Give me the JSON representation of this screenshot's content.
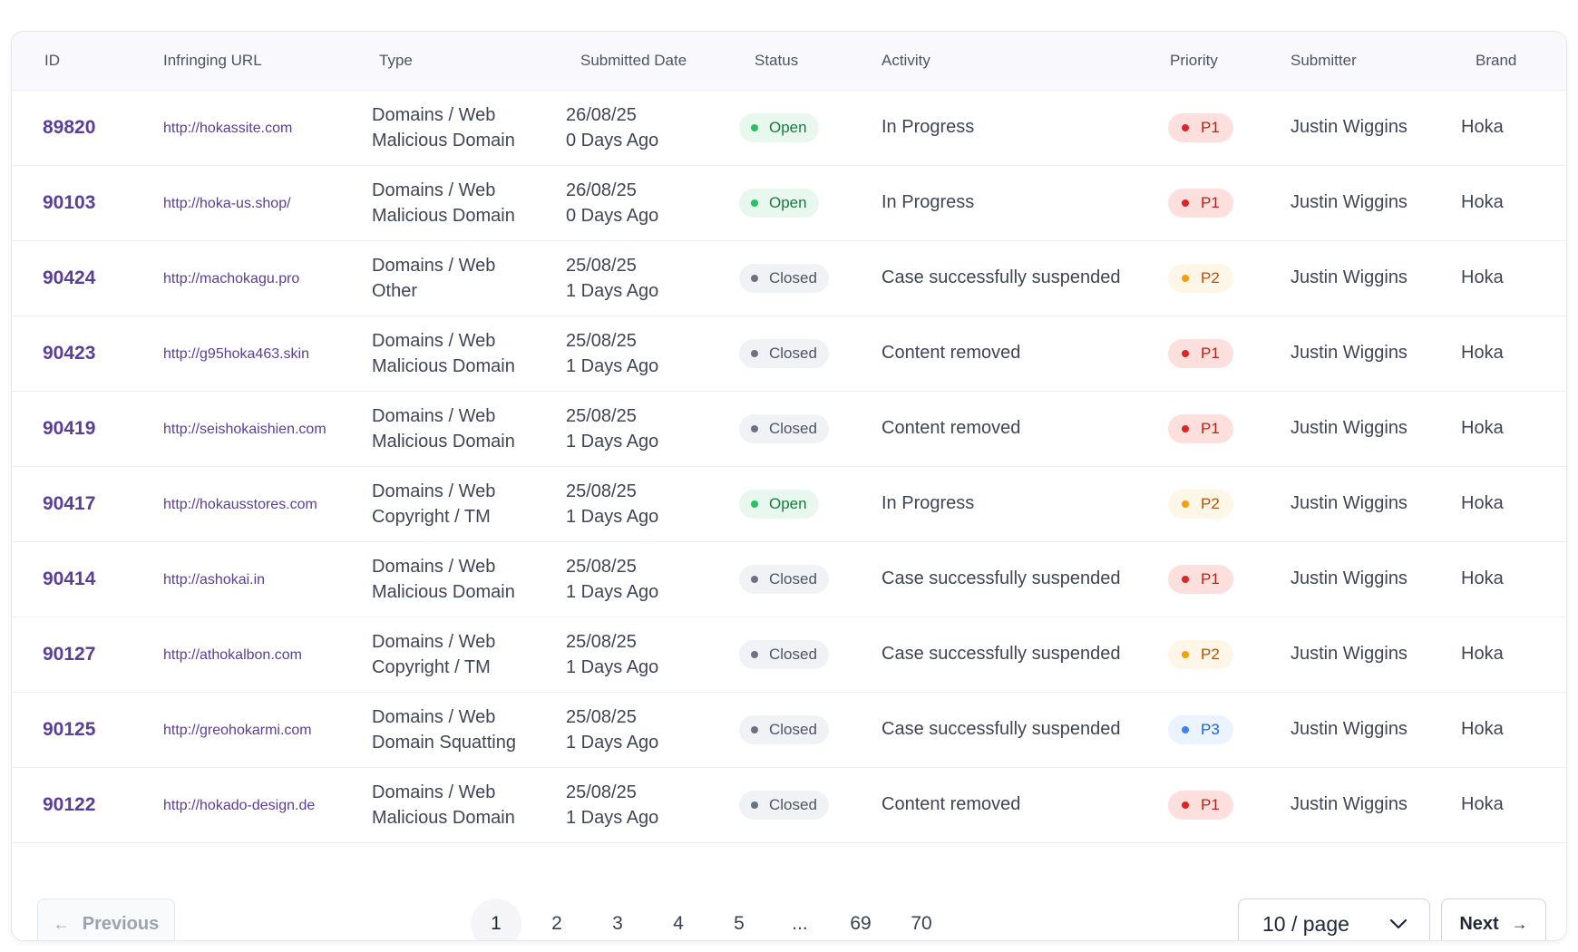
{
  "columns": {
    "id": "ID",
    "url": "Infringing URL",
    "type": "Type",
    "date": "Submitted Date",
    "status": "Status",
    "activity": "Activity",
    "priority": "Priority",
    "submitter": "Submitter",
    "brand": "Brand"
  },
  "rows": [
    {
      "id": "89820",
      "url": "http://hokassite.com",
      "type1": "Domains / Web",
      "type2": "Malicious Domain",
      "date": "26/08/25",
      "ago": "0 Days Ago",
      "status": "Open",
      "activity": "In Progress",
      "priority": "P1",
      "submitter": "Justin Wiggins",
      "brand": "Hoka"
    },
    {
      "id": "90103",
      "url": "http://hoka-us.shop/",
      "type1": "Domains / Web",
      "type2": "Malicious Domain",
      "date": "26/08/25",
      "ago": "0 Days Ago",
      "status": "Open",
      "activity": "In Progress",
      "priority": "P1",
      "submitter": "Justin Wiggins",
      "brand": "Hoka"
    },
    {
      "id": "90424",
      "url": "http://machokagu.pro",
      "type1": "Domains / Web",
      "type2": "Other",
      "date": "25/08/25",
      "ago": "1 Days Ago",
      "status": "Closed",
      "activity": "Case successfully suspended",
      "priority": "P2",
      "submitter": "Justin Wiggins",
      "brand": "Hoka"
    },
    {
      "id": "90423",
      "url": "http://g95hoka463.skin",
      "type1": "Domains / Web",
      "type2": "Malicious Domain",
      "date": "25/08/25",
      "ago": "1 Days Ago",
      "status": "Closed",
      "activity": "Content removed",
      "priority": "P1",
      "submitter": "Justin Wiggins",
      "brand": "Hoka"
    },
    {
      "id": "90419",
      "url": "http://seishokaishien.com",
      "type1": "Domains / Web",
      "type2": "Malicious Domain",
      "date": "25/08/25",
      "ago": "1 Days Ago",
      "status": "Closed",
      "activity": "Content removed",
      "priority": "P1",
      "submitter": "Justin Wiggins",
      "brand": "Hoka"
    },
    {
      "id": "90417",
      "url": "http://hokausstores.com",
      "type1": "Domains / Web",
      "type2": "Copyright / TM",
      "date": "25/08/25",
      "ago": "1 Days Ago",
      "status": "Open",
      "activity": "In Progress",
      "priority": "P2",
      "submitter": "Justin Wiggins",
      "brand": "Hoka"
    },
    {
      "id": "90414",
      "url": "http://ashokai.in",
      "type1": "Domains / Web",
      "type2": "Malicious Domain",
      "date": "25/08/25",
      "ago": "1 Days Ago",
      "status": "Closed",
      "activity": "Case successfully suspended",
      "priority": "P1",
      "submitter": "Justin Wiggins",
      "brand": "Hoka"
    },
    {
      "id": "90127",
      "url": "http://athokalbon.com",
      "type1": "Domains / Web",
      "type2": "Copyright / TM",
      "date": "25/08/25",
      "ago": "1 Days Ago",
      "status": "Closed",
      "activity": "Case successfully suspended",
      "priority": "P2",
      "submitter": "Justin Wiggins",
      "brand": "Hoka"
    },
    {
      "id": "90125",
      "url": "http://greohokarmi.com",
      "type1": "Domains / Web",
      "type2": "Domain Squatting",
      "date": "25/08/25",
      "ago": "1 Days Ago",
      "status": "Closed",
      "activity": "Case successfully suspended",
      "priority": "P3",
      "submitter": "Justin Wiggins",
      "brand": "Hoka"
    },
    {
      "id": "90122",
      "url": "http://hokado-design.de",
      "type1": "Domains / Web",
      "type2": "Malicious Domain",
      "date": "25/08/25",
      "ago": "1 Days Ago",
      "status": "Closed",
      "activity": "Content removed",
      "priority": "P1",
      "submitter": "Justin Wiggins",
      "brand": "Hoka"
    }
  ],
  "pagination": {
    "previous_label": "Previous",
    "next_label": "Next",
    "pages": [
      "1",
      "2",
      "3",
      "4",
      "5",
      "...",
      "69",
      "70"
    ],
    "current_page": "1",
    "per_page": "10 / page",
    "prev_icon": "arrow-left-icon",
    "next_icon": "arrow-right-icon",
    "dropdown_icon": "chevron-down-icon"
  }
}
